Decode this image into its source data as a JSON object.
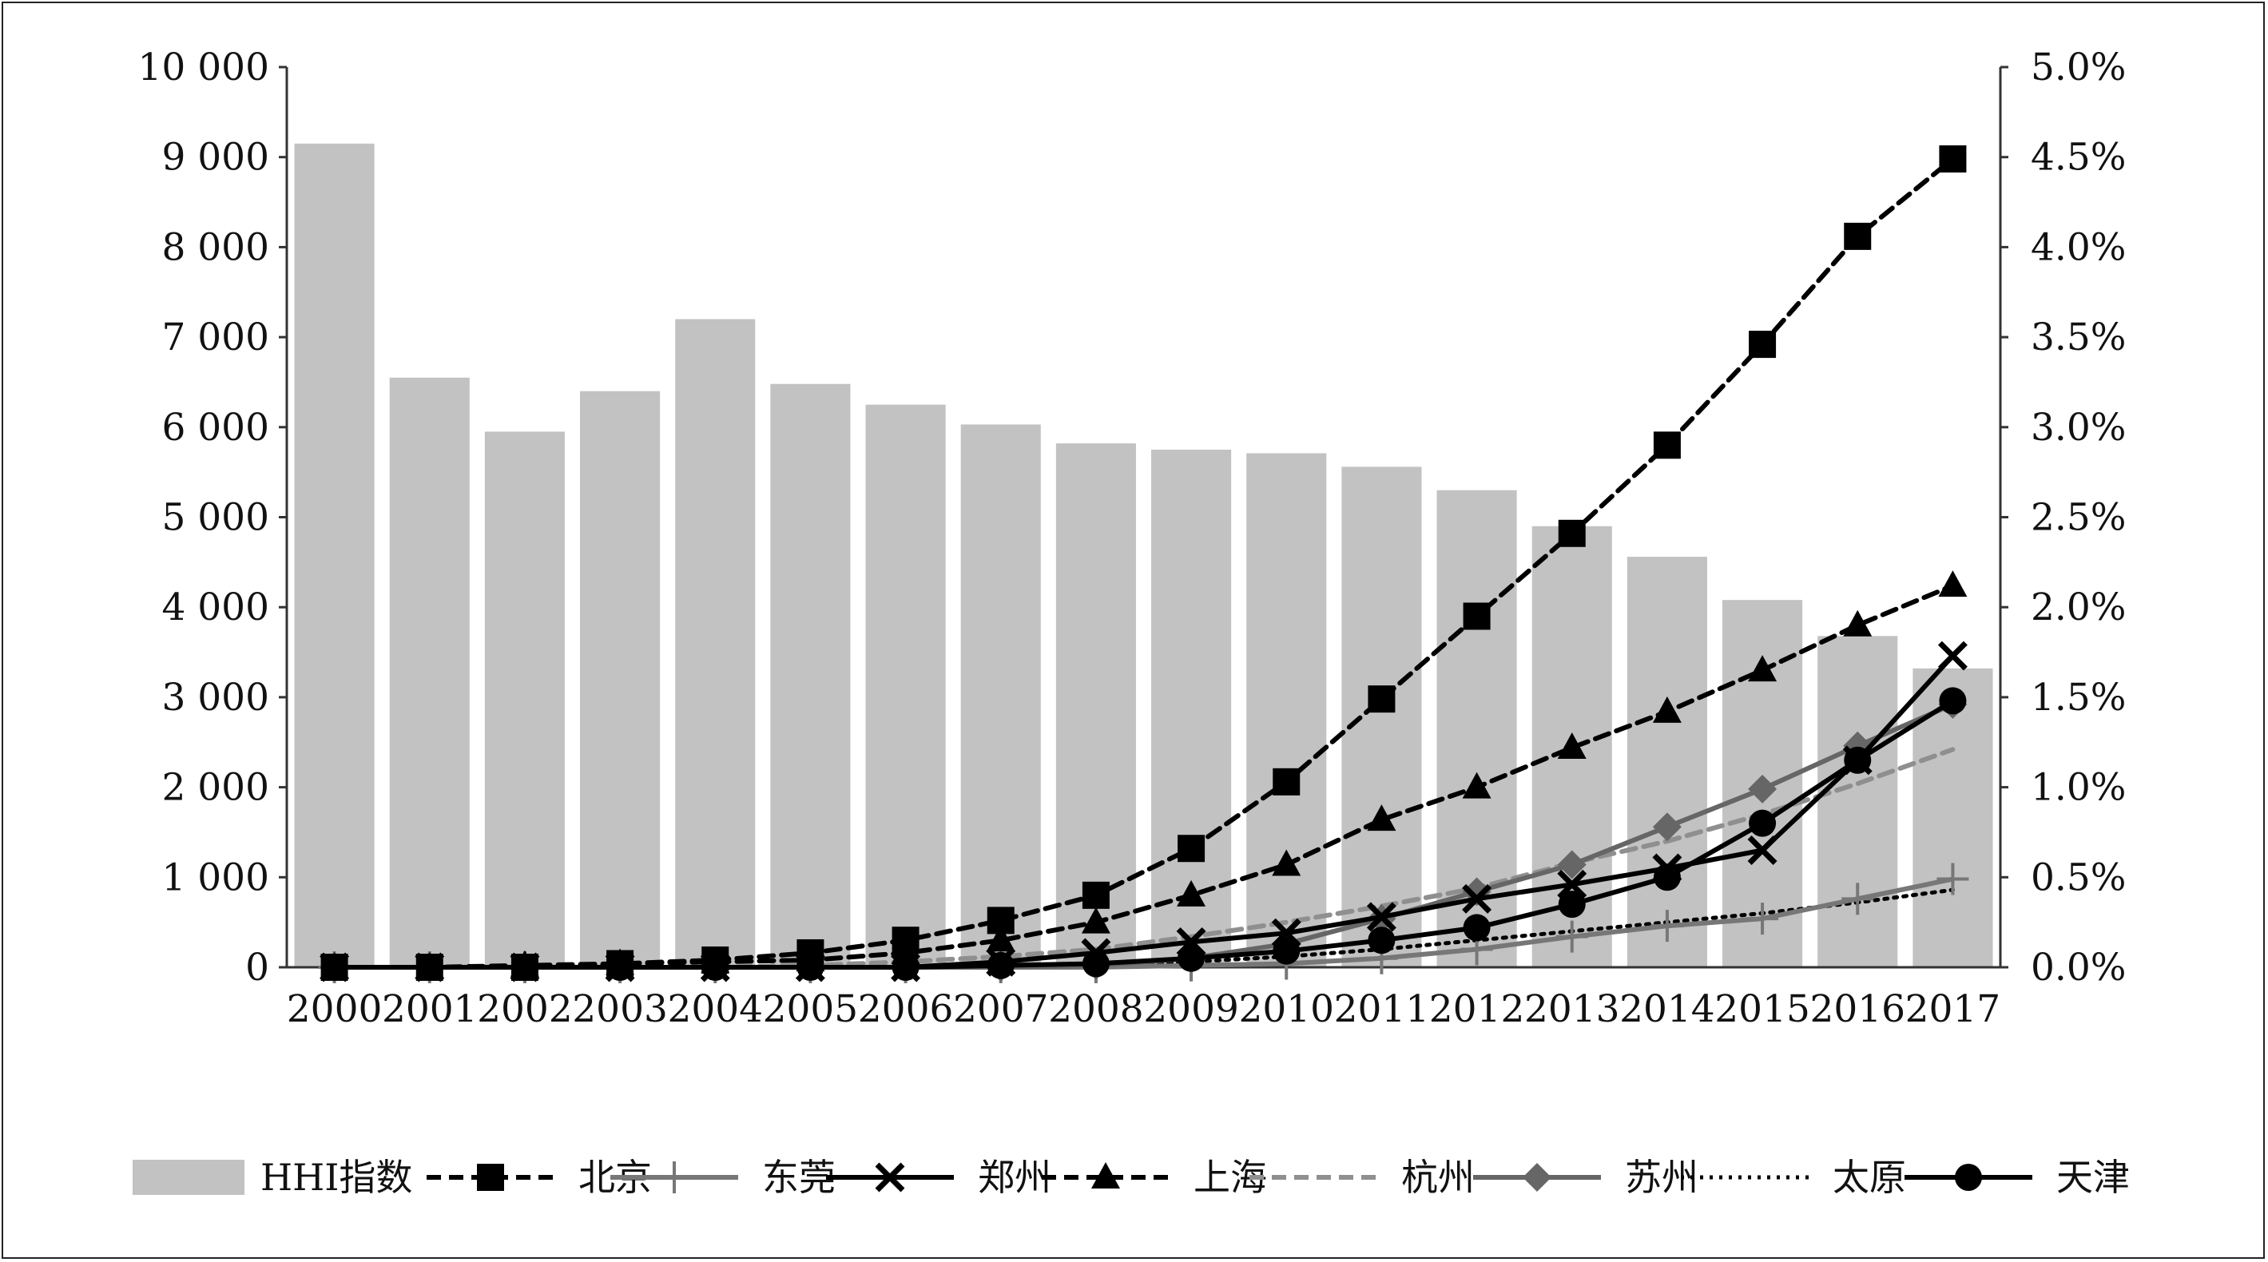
{
  "chart_data": {
    "type": "bar+line",
    "categories": [
      "2000",
      "2001",
      "2002",
      "2003",
      "2004",
      "2005",
      "2006",
      "2007",
      "2008",
      "2009",
      "2010",
      "2011",
      "2012",
      "2013",
      "2014",
      "2015",
      "2016",
      "2017"
    ],
    "left_axis": {
      "ylim": [
        0,
        10000
      ],
      "ticks": [
        "0",
        "1 000",
        "2 000",
        "3 000",
        "4 000",
        "5 000",
        "6 000",
        "7 000",
        "8 000",
        "9 000",
        "10 000"
      ]
    },
    "right_axis": {
      "ylim": [
        0,
        5.0
      ],
      "ticks": [
        "0.0%",
        "0.5%",
        "1.0%",
        "1.5%",
        "2.0%",
        "2.5%",
        "3.0%",
        "3.5%",
        "4.0%",
        "4.5%",
        "5.0%"
      ]
    },
    "bar_series": {
      "name": "HHI指数",
      "color": "#c2c2c2",
      "values": [
        9150,
        6550,
        5950,
        6400,
        7200,
        6480,
        6250,
        6030,
        5820,
        5750,
        5710,
        5560,
        5300,
        4900,
        4560,
        4080,
        3680,
        3320
      ]
    },
    "line_series": [
      {
        "name": "北京",
        "color": "#000000",
        "dash": "dashed",
        "marker": "square",
        "values": [
          0.0,
          0.0,
          0.0,
          0.02,
          0.04,
          0.08,
          0.15,
          0.26,
          0.4,
          0.66,
          1.03,
          1.49,
          1.95,
          2.41,
          2.9,
          3.46,
          4.06,
          4.49
        ]
      },
      {
        "name": "东莞",
        "color": "#777777",
        "dash": "solid",
        "marker": "plus",
        "values": [
          0.0,
          0.0,
          0.0,
          0.0,
          0.0,
          0.0,
          0.0,
          0.0,
          0.0,
          0.01,
          0.02,
          0.05,
          0.1,
          0.17,
          0.23,
          0.27,
          0.38,
          0.49
        ]
      },
      {
        "name": "郑州",
        "color": "#000000",
        "dash": "solid",
        "marker": "x",
        "values": [
          0.0,
          0.0,
          0.0,
          0.0,
          0.0,
          0.0,
          0.0,
          0.03,
          0.08,
          0.14,
          0.19,
          0.28,
          0.38,
          0.46,
          0.55,
          0.65,
          1.15,
          1.73
        ]
      },
      {
        "name": "上海",
        "color": "#000000",
        "dash": "dashed",
        "marker": "triangle",
        "values": [
          0.0,
          0.0,
          0.01,
          0.02,
          0.03,
          0.04,
          0.08,
          0.15,
          0.25,
          0.4,
          0.57,
          0.82,
          1.0,
          1.22,
          1.42,
          1.65,
          1.9,
          2.12
        ]
      },
      {
        "name": "杭州",
        "color": "#8f8f8f",
        "dash": "dashed",
        "marker": "none",
        "values": [
          0.0,
          0.0,
          0.0,
          0.0,
          0.0,
          0.01,
          0.03,
          0.06,
          0.1,
          0.17,
          0.25,
          0.34,
          0.44,
          0.58,
          0.7,
          0.85,
          1.02,
          1.21
        ]
      },
      {
        "name": "苏州",
        "color": "#666666",
        "dash": "solid",
        "marker": "diamond",
        "values": [
          0.0,
          0.0,
          0.0,
          0.0,
          0.0,
          0.0,
          0.0,
          0.0,
          0.01,
          0.05,
          0.13,
          0.27,
          0.42,
          0.57,
          0.78,
          0.99,
          1.23,
          1.46
        ]
      },
      {
        "name": "太原",
        "color": "#000000",
        "dash": "dotted",
        "marker": "none",
        "values": [
          0.0,
          0.0,
          0.0,
          0.0,
          0.0,
          0.0,
          0.0,
          0.0,
          0.01,
          0.03,
          0.06,
          0.1,
          0.15,
          0.2,
          0.25,
          0.3,
          0.36,
          0.43
        ]
      },
      {
        "name": "天津",
        "color": "#000000",
        "dash": "solid",
        "marker": "circle",
        "values": [
          0.0,
          0.0,
          0.0,
          0.0,
          0.0,
          0.0,
          0.0,
          0.01,
          0.02,
          0.05,
          0.09,
          0.15,
          0.22,
          0.35,
          0.5,
          0.8,
          1.15,
          1.48
        ]
      }
    ],
    "legend_position": "bottom",
    "grid": false
  }
}
